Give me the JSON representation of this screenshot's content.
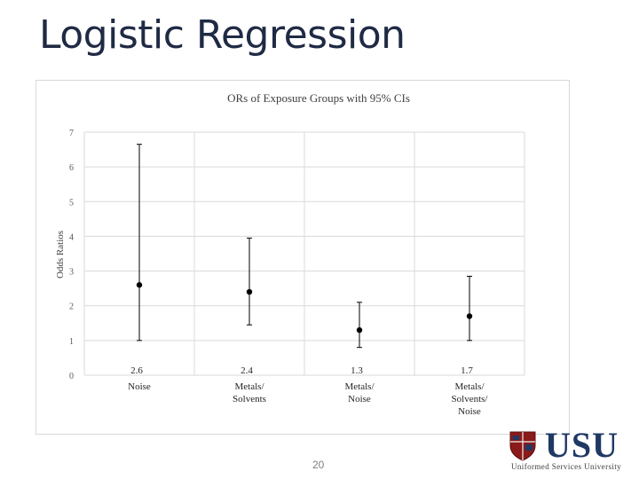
{
  "slide": {
    "title": "Logistic Regression",
    "page_number": "20"
  },
  "logo": {
    "wordmark": "USU",
    "subtitle": "Uniformed Services University"
  },
  "chart_data": {
    "type": "scatter",
    "title": "ORs of Exposure Groups with 95% CIs",
    "xlabel": "",
    "ylabel": "Odds Ratios",
    "ylim": [
      0,
      7
    ],
    "yticks": [
      0,
      1,
      2,
      3,
      4,
      5,
      6,
      7
    ],
    "grid": true,
    "legend": "none",
    "categories": [
      [
        "Noise"
      ],
      [
        "Metals/",
        "Solvents"
      ],
      [
        "Metals/",
        "Noise"
      ],
      [
        "Metals/",
        "Solvents/",
        "Noise"
      ]
    ],
    "values": [
      2.6,
      2.4,
      1.3,
      1.7
    ],
    "value_labels": [
      "2.6",
      "2.4",
      "1.3",
      "1.7"
    ],
    "ci_lower": [
      1.0,
      1.45,
      0.8,
      1.0
    ],
    "ci_upper": [
      6.65,
      3.95,
      2.1,
      2.85
    ],
    "colors": {
      "marker": "#000000",
      "errorbar": "#000000",
      "grid": "#d9d9d9"
    }
  }
}
